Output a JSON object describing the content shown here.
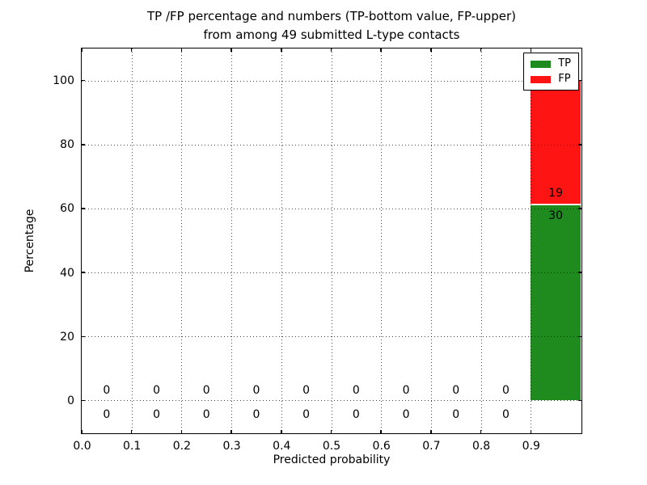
{
  "chart_data": {
    "type": "bar",
    "stacked": true,
    "title_line1": "TP /FP percentage and numbers (TP-bottom value, FP-upper)",
    "title_line2": "from among 49 submitted L-type contacts",
    "xlabel": "Predicted probability",
    "ylabel": "Percentage",
    "xlim": [
      0.0,
      1.0
    ],
    "ylim": [
      -10,
      110
    ],
    "grid": true,
    "grid_style": "dotted",
    "xtick_values": [
      0.0,
      0.1,
      0.2,
      0.3,
      0.4,
      0.5,
      0.6,
      0.7,
      0.8,
      0.9
    ],
    "xtick_labels": [
      "0.0",
      "0.1",
      "0.2",
      "0.3",
      "0.4",
      "0.5",
      "0.6",
      "0.7",
      "0.8",
      "0.9"
    ],
    "ytick_values": [
      0,
      20,
      40,
      60,
      80,
      100
    ],
    "ytick_labels": [
      "0",
      "20",
      "40",
      "60",
      "80",
      "100"
    ],
    "total_contacts": 49,
    "unit": "percent",
    "bins": [
      {
        "range": [
          0.0,
          0.1
        ],
        "tp": 0,
        "fp": 0
      },
      {
        "range": [
          0.1,
          0.2
        ],
        "tp": 0,
        "fp": 0
      },
      {
        "range": [
          0.2,
          0.3
        ],
        "tp": 0,
        "fp": 0
      },
      {
        "range": [
          0.3,
          0.4
        ],
        "tp": 0,
        "fp": 0
      },
      {
        "range": [
          0.4,
          0.5
        ],
        "tp": 0,
        "fp": 0
      },
      {
        "range": [
          0.5,
          0.6
        ],
        "tp": 0,
        "fp": 0
      },
      {
        "range": [
          0.6,
          0.7
        ],
        "tp": 0,
        "fp": 0
      },
      {
        "range": [
          0.7,
          0.8
        ],
        "tp": 0,
        "fp": 0
      },
      {
        "range": [
          0.8,
          0.9
        ],
        "tp": 0,
        "fp": 0
      },
      {
        "range": [
          0.9,
          1.0
        ],
        "tp": 30,
        "fp": 19
      }
    ],
    "series": [
      {
        "name": "TP",
        "color": "#1f8b1f"
      },
      {
        "name": "FP",
        "color": "#ff1414"
      }
    ],
    "legend": {
      "position": "upper right",
      "entries": [
        {
          "label": "TP",
          "color": "#1f8b1f"
        },
        {
          "label": "FP",
          "color": "#ff1414"
        }
      ]
    },
    "colors": {
      "axis": "#000000",
      "grid": "#000000",
      "background": "#ffffff",
      "bar_divider": "rgba(255,255,255,0.9)"
    }
  }
}
